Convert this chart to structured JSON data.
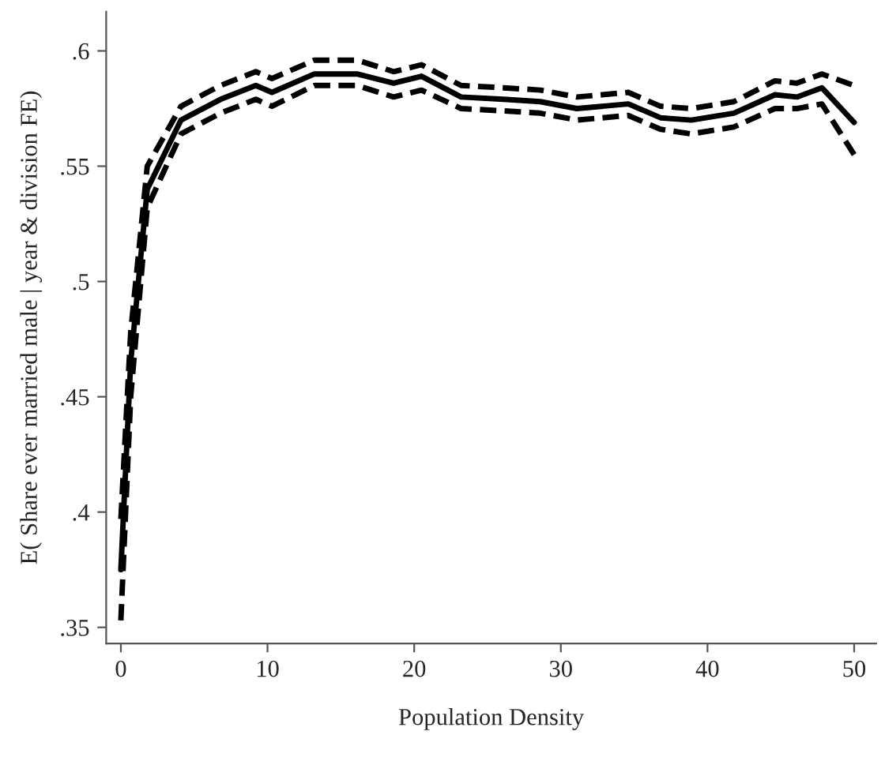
{
  "chart_data": {
    "type": "line",
    "xlabel": "Population Density",
    "ylabel": "E( Share ever married male | year & division FE)",
    "x": [
      0,
      0.67,
      1.8,
      4.1,
      6.8,
      9.2,
      10.3,
      13.2,
      16.1,
      18.6,
      20.5,
      23.2,
      26.1,
      28.6,
      31.1,
      34.6,
      36.8,
      38.9,
      41.8,
      44.6,
      46.1,
      47.8,
      50
    ],
    "series": [
      {
        "color": "#000000",
        "line_style": "solid",
        "values": [
          0.375,
          0.465,
          0.54,
          0.57,
          0.579,
          0.585,
          0.582,
          0.59,
          0.59,
          0.586,
          0.589,
          0.58,
          0.579,
          0.578,
          0.575,
          0.577,
          0.571,
          0.57,
          0.573,
          0.581,
          0.58,
          0.584,
          0.569
        ]
      },
      {
        "color": "#000000",
        "line_style": "dashed",
        "values": [
          0.353,
          0.45,
          0.532,
          0.564,
          0.573,
          0.579,
          0.576,
          0.585,
          0.585,
          0.58,
          0.583,
          0.575,
          0.574,
          0.573,
          0.57,
          0.572,
          0.566,
          0.564,
          0.567,
          0.575,
          0.575,
          0.577,
          0.555
        ]
      },
      {
        "color": "#000000",
        "line_style": "dashed",
        "values": [
          0.397,
          0.478,
          0.55,
          0.576,
          0.585,
          0.591,
          0.588,
          0.596,
          0.596,
          0.591,
          0.594,
          0.585,
          0.584,
          0.583,
          0.58,
          0.582,
          0.576,
          0.575,
          0.578,
          0.587,
          0.586,
          0.59,
          0.585
        ]
      }
    ],
    "xlim": [
      -1,
      51.5
    ],
    "ylim": [
      0.343,
      0.617
    ],
    "xticks": [
      0,
      10,
      20,
      30,
      40,
      50
    ],
    "yticks": [
      {
        "value": 0.35,
        "label": ".35"
      },
      {
        "value": 0.4,
        "label": ".4"
      },
      {
        "value": 0.45,
        "label": ".45"
      },
      {
        "value": 0.5,
        "label": ".5"
      },
      {
        "value": 0.55,
        "label": ".55"
      },
      {
        "value": 0.6,
        "label": ".6"
      }
    ],
    "grid": false,
    "legend": false
  }
}
